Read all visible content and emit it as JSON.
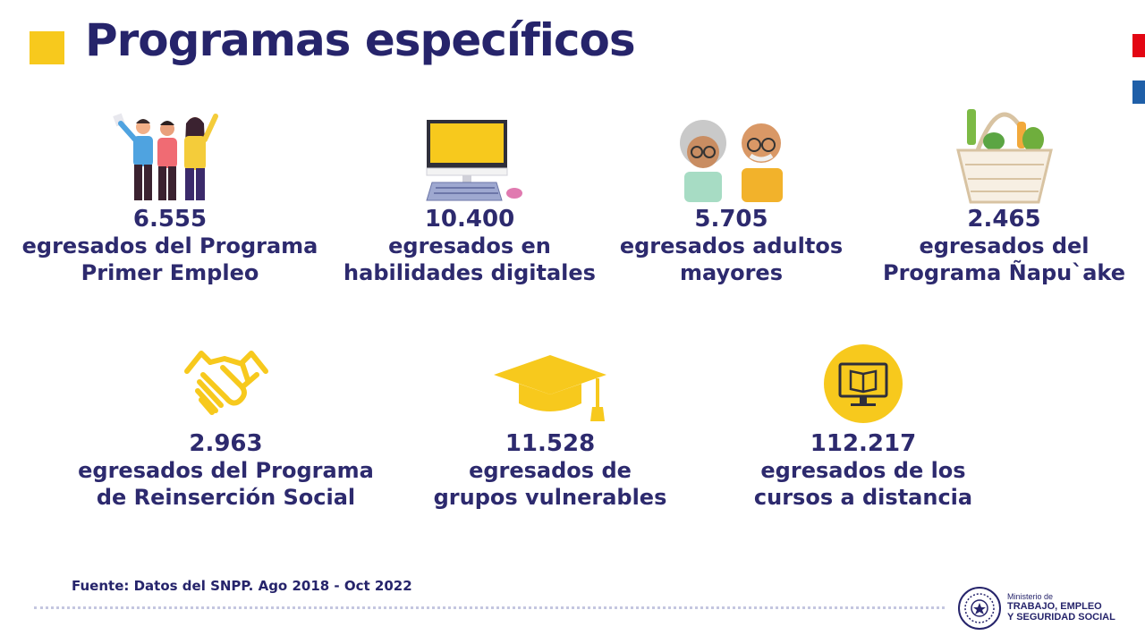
{
  "header": {
    "title": "Programas específicos"
  },
  "stats": [
    {
      "value": "6.555",
      "label": "egresados del Programa\nPrimer Empleo",
      "icon": "young-people-icon"
    },
    {
      "value": "10.400",
      "label": "egresados en\nhabilidades digitales",
      "icon": "computer-icon"
    },
    {
      "value": "5.705",
      "label": "egresados adultos\nmayores",
      "icon": "elderly-couple-icon"
    },
    {
      "value": "2.465",
      "label": "egresados del\nPrograma Ñapu`ake",
      "icon": "shopping-basket-icon"
    },
    {
      "value": "2.963",
      "label": "egresados del Programa\nde Reinserción Social",
      "icon": "handshake-icon"
    },
    {
      "value": "11.528",
      "label": "egresados de\ngrupos vulnerables",
      "icon": "graduation-cap-icon"
    },
    {
      "value": "112.217",
      "label": "egresados de los\ncursos a distancia",
      "icon": "online-course-icon"
    }
  ],
  "footer": {
    "source": "Fuente: Datos del SNPP. Ago 2018 - Oct 2022",
    "ministry_small": "Ministerio de",
    "ministry_line1": "TRABAJO, EMPLEO",
    "ministry_line2": "Y SEGURIDAD SOCIAL"
  },
  "colors": {
    "accent": "#f7c91d",
    "navy": "#26246b",
    "flag_red": "#e30613",
    "flag_blue": "#1f5fa8"
  }
}
